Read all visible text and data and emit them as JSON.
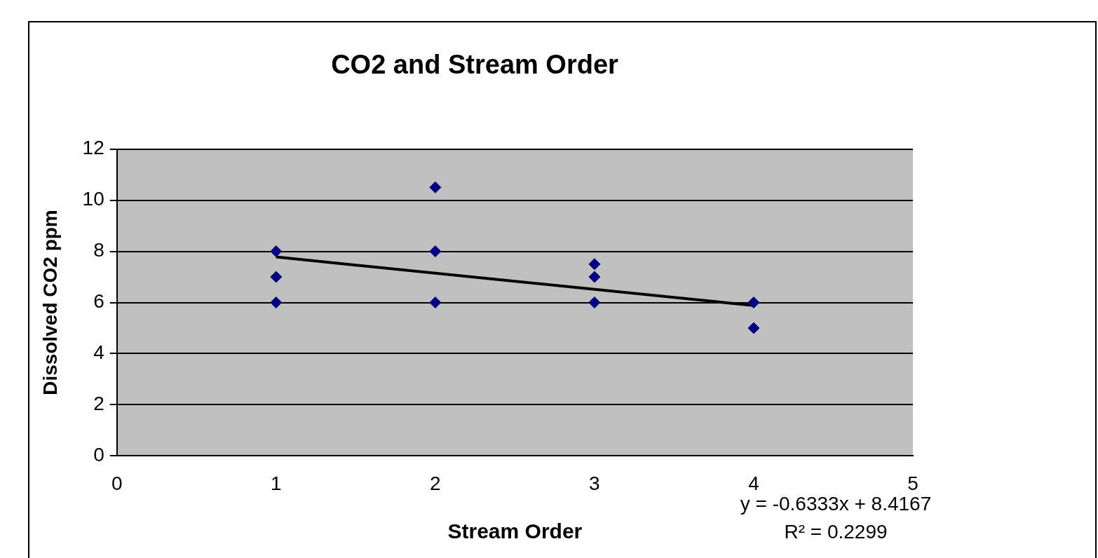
{
  "chart_data": {
    "type": "scatter",
    "title": "CO2 and Stream Order",
    "xlabel": "Stream Order",
    "ylabel": "Dissolved CO2 ppm",
    "series": [
      {
        "color": "#000080",
        "marker": "diamond",
        "x": [
          1,
          1,
          1,
          2,
          2,
          2,
          3,
          3,
          3,
          4,
          4
        ],
        "values": [
          8,
          7,
          6,
          10.5,
          8,
          6,
          7.5,
          7,
          6,
          6,
          5
        ]
      },
      {
        "type": "line",
        "marker": "none",
        "color": "#000000",
        "x": [
          1,
          4
        ],
        "values": [
          7.78,
          5.88
        ]
      }
    ],
    "xlim": [
      0,
      5
    ],
    "xticks": [
      0,
      1,
      2,
      3,
      4,
      5
    ],
    "ylim": [
      0,
      12
    ],
    "yticks": [
      0,
      2,
      4,
      6,
      8,
      10,
      12
    ],
    "grid": "y",
    "legend": false,
    "annotations": [
      "y = -0.6333x + 8.4167",
      "R² = 0.2299"
    ]
  }
}
